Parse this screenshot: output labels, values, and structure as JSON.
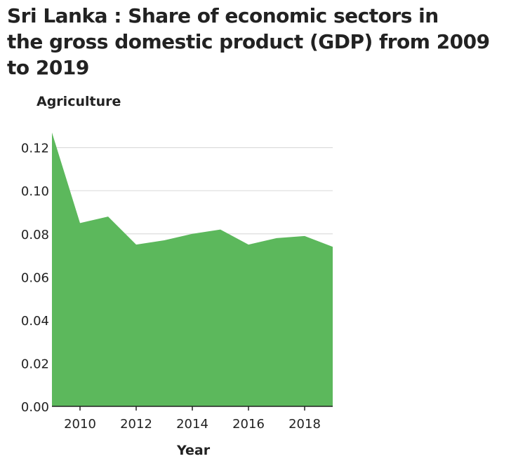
{
  "chart_data": {
    "type": "area",
    "title": "Sri Lanka : Share of economic sectors in the gross domestic product (GDP) from 2009 to 2019",
    "title_lines": [
      "Sri Lanka : Share of economic sectors in",
      "the gross domestic product (GDP) from 2009",
      "to 2019"
    ],
    "ylabel": "Agriculture",
    "xlabel": "Year",
    "x": [
      2009,
      2010,
      2011,
      2012,
      2013,
      2014,
      2015,
      2016,
      2017,
      2018,
      2019
    ],
    "series": [
      {
        "name": "",
        "values": [
          0.127,
          0.085,
          0.088,
          0.075,
          0.077,
          0.08,
          0.082,
          0.075,
          0.078,
          0.079,
          0.074
        ]
      }
    ],
    "xlim": [
      2009,
      2019
    ],
    "ylim": [
      0,
      0.128
    ],
    "x_ticks": [
      2010,
      2012,
      2014,
      2016,
      2018
    ],
    "x_tick_labels": [
      "2010",
      "2012",
      "2014",
      "2016",
      "2018"
    ],
    "y_ticks": [
      0,
      0.02,
      0.04,
      0.06,
      0.08,
      0.1,
      0.12
    ],
    "y_tick_labels": [
      "0.00",
      "0.02",
      "0.04",
      "0.06",
      "0.08",
      "0.10",
      "0.12"
    ],
    "grid": "horizontal",
    "colors": {
      "area_fill": "#5cb85c",
      "grid": "#dddddd",
      "axis": "#222222",
      "text": "#222222"
    }
  }
}
